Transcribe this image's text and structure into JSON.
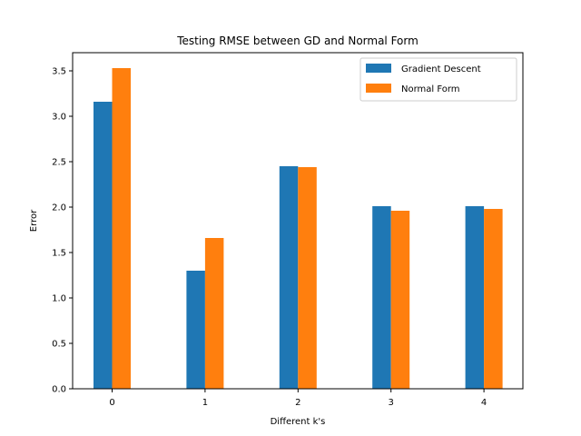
{
  "chart_data": {
    "type": "bar",
    "title": "Testing RMSE between GD and Normal Form",
    "xlabel": "Different k's",
    "ylabel": "Error",
    "categories": [
      "0",
      "1",
      "2",
      "3",
      "4"
    ],
    "series": [
      {
        "name": "Gradient Descent",
        "color": "#1f77b4",
        "values": [
          3.16,
          1.3,
          2.45,
          2.01,
          2.01
        ]
      },
      {
        "name": "Normal Form",
        "color": "#ff7f0e",
        "values": [
          3.53,
          1.66,
          2.44,
          1.96,
          1.98
        ]
      }
    ],
    "ylim": [
      0,
      3.7
    ],
    "yticks": [
      "0.0",
      "0.5",
      "1.0",
      "1.5",
      "2.0",
      "2.5",
      "3.0",
      "3.5"
    ],
    "grid": false,
    "legend_position": "top-right"
  }
}
